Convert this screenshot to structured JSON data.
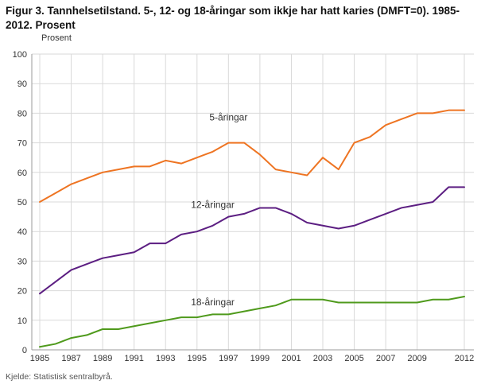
{
  "title": "Figur 3. Tannhelsetilstand. 5-, 12- og 18-åringar som ikkje har hatt karies (DMFT=0). 1985-2012. Prosent",
  "source": "Kjelde: Statistisk sentralbyrå.",
  "colors": {
    "grid": "#d9d9d9",
    "axis": "#9b9b9b",
    "text": "#333333"
  },
  "chart_data": {
    "type": "line",
    "title": "Figur 3. Tannhelsetilstand. 5-, 12- og 18-åringar som ikkje har hatt karies (DMFT=0). 1985-2012. Prosent",
    "xlabel": "",
    "ylabel": "Prosent",
    "ylim": [
      0,
      100
    ],
    "ytick_interval": 10,
    "grid": true,
    "legend_position": "inline-annotations",
    "x": [
      1985,
      1986,
      1987,
      1988,
      1989,
      1990,
      1991,
      1992,
      1993,
      1994,
      1995,
      1996,
      1997,
      1998,
      1999,
      2000,
      2001,
      2002,
      2003,
      2004,
      2005,
      2006,
      2007,
      2008,
      2009,
      2010,
      2011,
      2012
    ],
    "xticks": [
      1985,
      1987,
      1989,
      1991,
      1993,
      1995,
      1997,
      1999,
      2001,
      2003,
      2005,
      2007,
      2009,
      2012
    ],
    "series": [
      {
        "name": "5-åringar",
        "color": "#ee7422",
        "values": [
          50,
          53,
          56,
          58,
          60,
          61,
          62,
          62,
          64,
          63,
          65,
          67,
          70,
          70,
          66,
          61,
          60,
          59,
          65,
          61,
          70,
          72,
          76,
          78,
          80,
          80,
          81,
          81
        ]
      },
      {
        "name": "12-åringar",
        "color": "#5c1e82",
        "values": [
          19,
          23,
          27,
          29,
          31,
          32,
          33,
          36,
          36,
          39,
          40,
          42,
          45,
          46,
          48,
          48,
          46,
          43,
          42,
          41,
          42,
          44,
          46,
          48,
          49,
          50,
          55,
          55
        ]
      },
      {
        "name": "18-åringar",
        "color": "#4f9a1c",
        "values": [
          1,
          2,
          4,
          5,
          7,
          7,
          8,
          9,
          10,
          11,
          11,
          12,
          12,
          13,
          14,
          15,
          17,
          17,
          17,
          16,
          16,
          16,
          16,
          16,
          16,
          17,
          17,
          18
        ]
      }
    ],
    "annotations": [
      {
        "series": 0,
        "year": 1997,
        "value": 77.5
      },
      {
        "series": 1,
        "year": 1996,
        "value": 48
      },
      {
        "series": 2,
        "year": 1996,
        "value": 15
      }
    ]
  }
}
